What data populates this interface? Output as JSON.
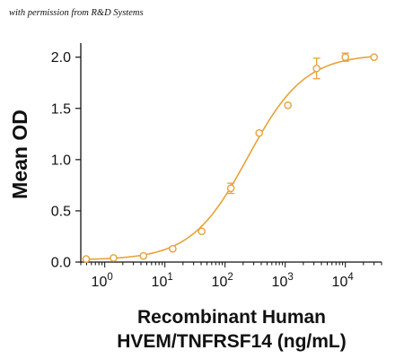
{
  "watermark": "with permission from R&D Systems",
  "chart_data": {
    "type": "scatter",
    "xscale": "log",
    "xlabel_line1": "Recombinant Human",
    "xlabel_line2": "HVEM/TNFRSF14 (ng/mL)",
    "ylabel": "Mean OD",
    "xlim": [
      0.4,
      40000
    ],
    "ylim": [
      0,
      2.12
    ],
    "yticks": [
      0.0,
      0.5,
      1.0,
      1.5,
      2.0
    ],
    "ytick_labels": [
      "0.0",
      "0.5",
      "1.0",
      "1.5",
      "2.0"
    ],
    "xtick_exponents": [
      0,
      1,
      2,
      3,
      4
    ],
    "xtick_base": "10",
    "color": "#E8A23A",
    "series": [
      {
        "x": [
          0.49,
          1.4,
          4.4,
          13.5,
          41,
          125,
          370,
          1110,
          3330,
          10000,
          30000
        ],
        "y": [
          0.03,
          0.04,
          0.06,
          0.13,
          0.3,
          0.72,
          1.26,
          1.53,
          1.89,
          2.0,
          2.0
        ],
        "err": [
          0.01,
          0.01,
          0.01,
          0.01,
          0.02,
          0.05,
          0.02,
          0.02,
          0.1,
          0.04,
          0.02
        ]
      }
    ],
    "fit": {
      "bottom": 0.02,
      "top": 2.03,
      "ec50": 240,
      "hill": 0.92
    }
  }
}
